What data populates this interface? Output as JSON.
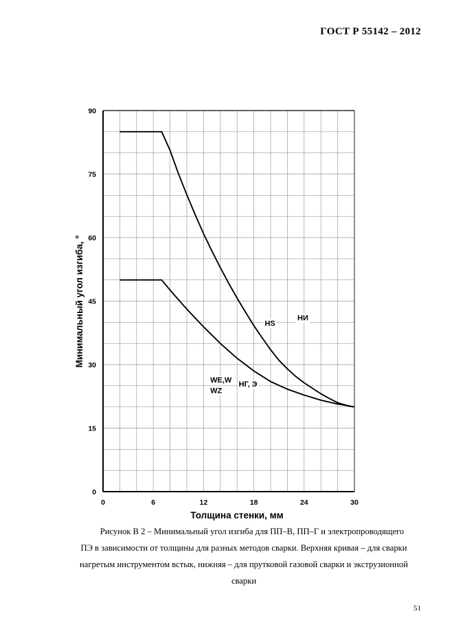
{
  "header": {
    "doc_number": "ГОСТ Р  55142 – 2012"
  },
  "chart_data": {
    "type": "line",
    "xlabel": "Толщина стенки, мм",
    "ylabel": "Минимальный угол изгиба, °",
    "xlim": [
      0,
      30
    ],
    "ylim": [
      0,
      90
    ],
    "xticks": [
      0,
      6,
      12,
      18,
      24,
      30
    ],
    "yticks": [
      0,
      15,
      30,
      45,
      60,
      75,
      90
    ],
    "grid": true,
    "series": [
      {
        "x": [
          2,
          7,
          8,
          9,
          10,
          11,
          12,
          13,
          14,
          15,
          16,
          17,
          18,
          19,
          20,
          21,
          22,
          23,
          24,
          25,
          26,
          27,
          28,
          29,
          30
        ],
        "y": [
          85,
          85,
          80.6,
          75.1,
          70.1,
          65.4,
          60.9,
          56.8,
          52.9,
          49.2,
          45.7,
          42.4,
          39.2,
          36.3,
          33.5,
          31.0,
          29.0,
          27.2,
          25.7,
          24.4,
          23.1,
          22.0,
          21.0,
          20.4,
          20
        ]
      },
      {
        "x": [
          2,
          7,
          8,
          10,
          12,
          14,
          16,
          18,
          20,
          22,
          24,
          26,
          28,
          30
        ],
        "y": [
          50,
          50,
          47.6,
          43.1,
          38.9,
          35.0,
          31.5,
          28.5,
          26.0,
          24.2,
          22.8,
          21.6,
          20.7,
          20
        ]
      }
    ],
    "annotations": [
      {
        "text": "HS",
        "x": 19.3,
        "y": 39.2
      },
      {
        "text": "НИ",
        "x": 23.2,
        "y": 40.5
      },
      {
        "text": "WE,W",
        "x": 12.8,
        "y": 25.8
      },
      {
        "text": "WZ",
        "x": 12.8,
        "y": 23.3
      },
      {
        "text": "НГ, Э",
        "x": 16.2,
        "y": 24.8
      }
    ]
  },
  "caption": {
    "line1": "Рисунок В 2 – Минимальный угол изгиба для ПП–В, ПП–Г  и электропроводящего",
    "line2": "ПЭ в зависимости от толщины для разных методов сварки. Верхняя кривая – для сварки",
    "line3": "нагретым инструментом встык, нижняя – для прутковой газовой сварки и экструзионной",
    "line4": "сварки"
  },
  "page_number": "51"
}
